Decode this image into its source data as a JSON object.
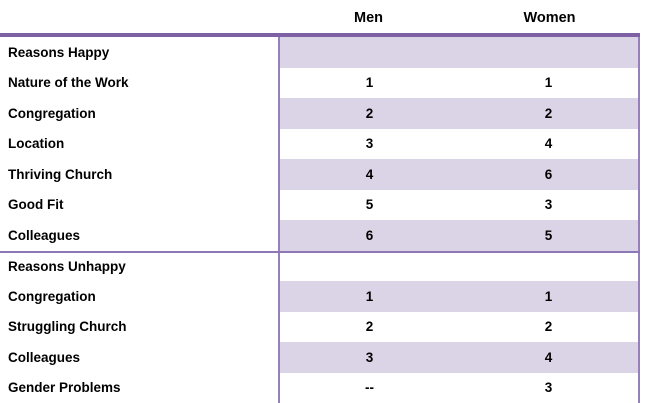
{
  "table": {
    "columns": [
      {
        "label": "Men"
      },
      {
        "label": "Women"
      }
    ],
    "rows": [
      {
        "label": "Reasons Happy",
        "men": "",
        "women": "",
        "section": true,
        "band": true,
        "divider": false
      },
      {
        "label": "Nature of the Work",
        "men": "1",
        "women": "1",
        "section": false,
        "band": false,
        "divider": false
      },
      {
        "label": "Congregation",
        "men": "2",
        "women": "2",
        "section": false,
        "band": true,
        "divider": false
      },
      {
        "label": "Location",
        "men": "3",
        "women": "4",
        "section": false,
        "band": false,
        "divider": false
      },
      {
        "label": "Thriving Church",
        "men": "4",
        "women": "6",
        "section": false,
        "band": true,
        "divider": false
      },
      {
        "label": "Good Fit",
        "men": "5",
        "women": "3",
        "section": false,
        "band": false,
        "divider": false
      },
      {
        "label": "Colleagues",
        "men": "6",
        "women": "5",
        "section": false,
        "band": true,
        "divider": false
      },
      {
        "label": "Reasons Unhappy",
        "men": "",
        "women": "",
        "section": true,
        "band": false,
        "divider": true
      },
      {
        "label": "Congregation",
        "men": "1",
        "women": "1",
        "section": false,
        "band": true,
        "divider": false
      },
      {
        "label": "Struggling Church",
        "men": "2",
        "women": "2",
        "section": false,
        "band": false,
        "divider": false
      },
      {
        "label": "Colleagues",
        "men": "3",
        "women": "4",
        "section": false,
        "band": true,
        "divider": false
      },
      {
        "label": "Gender Problems",
        "men": "--",
        "women": "3",
        "section": false,
        "band": false,
        "divider": false
      }
    ]
  },
  "chart_data": {
    "type": "table",
    "title": "",
    "columns": [
      "",
      "Men",
      "Women"
    ],
    "sections": [
      {
        "name": "Reasons Happy",
        "rows": [
          [
            "Nature of the Work",
            1,
            1
          ],
          [
            "Congregation",
            2,
            2
          ],
          [
            "Location",
            3,
            4
          ],
          [
            "Thriving Church",
            4,
            6
          ],
          [
            "Good Fit",
            5,
            3
          ],
          [
            "Colleagues",
            6,
            5
          ]
        ]
      },
      {
        "name": "Reasons Unhappy",
        "rows": [
          [
            "Congregation",
            1,
            1
          ],
          [
            "Struggling Church",
            2,
            2
          ],
          [
            "Colleagues",
            3,
            4
          ],
          [
            "Gender Problems",
            "--",
            3
          ]
        ]
      }
    ]
  },
  "colors": {
    "band": "#DBD3E6",
    "border-thick": "#7E61A5",
    "border-thin": "#9680BC",
    "divider": "#8E77B5",
    "text": "#000000",
    "background": "#FFFFFF"
  }
}
